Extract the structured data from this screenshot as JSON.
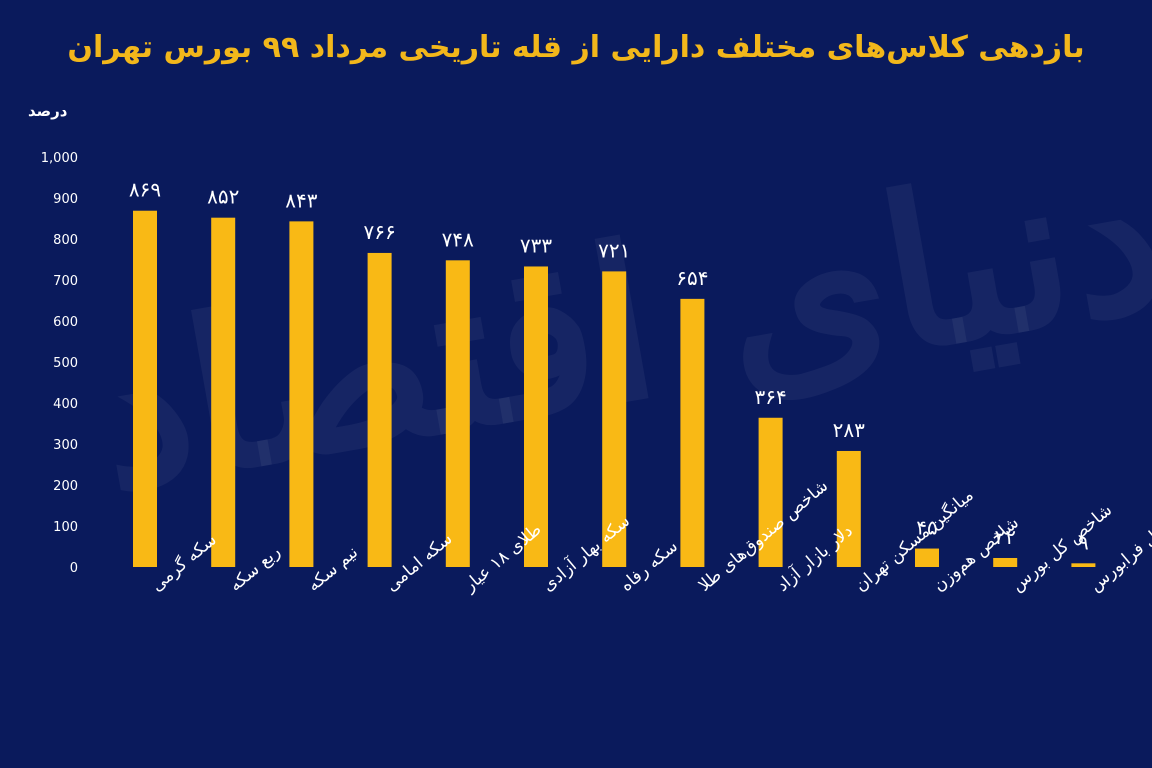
{
  "chart_data": {
    "type": "bar",
    "title": "بازدهی کلاس‌های مختلف دارایی از قله تاریخی مرداد ۹۹ بورس تهران",
    "ylabel": "درصد",
    "ylim": [
      0,
      1000
    ],
    "yticks": [
      "1,000",
      "900",
      "800",
      "700",
      "600",
      "500",
      "400",
      "300",
      "200",
      "100",
      "0"
    ],
    "ytick_values": [
      1000,
      900,
      800,
      700,
      600,
      500,
      400,
      300,
      200,
      100,
      0
    ],
    "categories": [
      "سکه گرمی",
      "ربع سکه",
      "نیم سکه",
      "سکه امامی",
      "طلای ۱۸ عیار",
      "سکه بهار آزادی",
      "سکه رفاه",
      "شاخص صندوق‌های طلا",
      "دلار بازار آزاد",
      "میانگین مسکن تهران",
      "شاخص هم‌وزن",
      "شاخص کل بورس",
      "شاخص کل فرابورس"
    ],
    "values": [
      869,
      852,
      843,
      766,
      748,
      733,
      721,
      654,
      364,
      283,
      45,
      22,
      9
    ],
    "value_labels": [
      "۸۶۹",
      "۸۵۲",
      "۸۴۳",
      "۷۶۶",
      "۷۴۸",
      "۷۳۳",
      "۷۲۱",
      "۶۵۴",
      "۳۶۴",
      "۲۸۳",
      "۴۵",
      "۲۲",
      "۹"
    ],
    "grid": false,
    "colors": {
      "bar": "#f9b915",
      "background": "#0a1a5c",
      "title": "#f2b71b"
    }
  },
  "watermark": "دنیای اقتصاد"
}
